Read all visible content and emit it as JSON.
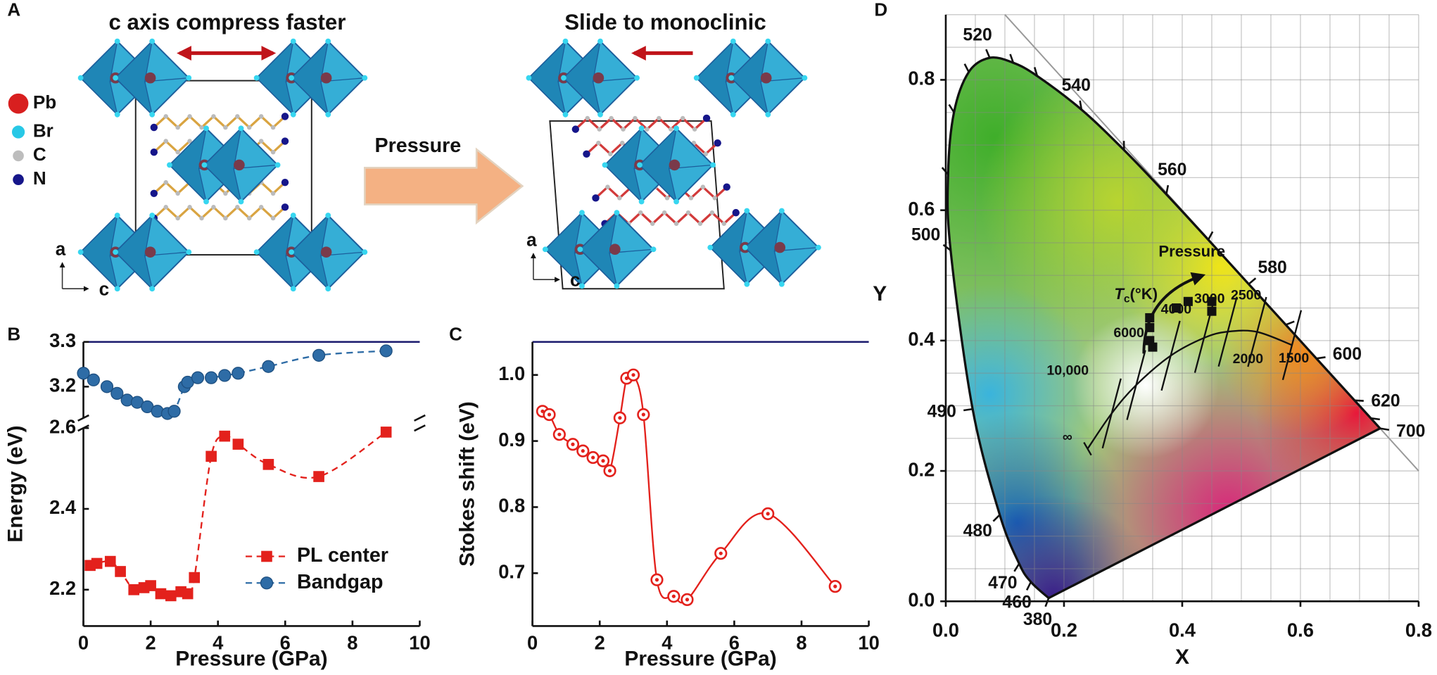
{
  "panel_a": {
    "label": "A",
    "left_title": "c axis compress faster",
    "right_title": "Slide to monoclinic",
    "arrow_label": "Pressure",
    "legend": [
      "Pb",
      "Br",
      "C",
      "N"
    ],
    "axes_left": [
      "a",
      "c"
    ],
    "axes_right": [
      "a",
      "c"
    ]
  },
  "chart_data": [
    {
      "label": "B",
      "type": "line",
      "x_label": "Pressure (GPa)",
      "y_label": "Energy (eV)",
      "xlim": [
        0,
        10
      ],
      "xticks": [
        0,
        2,
        4,
        6,
        8,
        10
      ],
      "ylim": [
        2.11,
        2.6
      ],
      "yticks": [
        2.2,
        2.4,
        2.6
      ],
      "ylim_top": [
        3.13,
        3.3
      ],
      "yticks_top": [
        3.2,
        3.3
      ],
      "legend": "lower right",
      "series": [
        {
          "name": "PL center",
          "color": "#e3211c",
          "marker": "square",
          "dashed": true,
          "segment": "bottom",
          "x": [
            0.2,
            0.4,
            0.8,
            1.1,
            1.5,
            1.8,
            2.0,
            2.3,
            2.6,
            2.9,
            3.1,
            3.3,
            3.8,
            4.2,
            4.6,
            5.5,
            7.0,
            9.0
          ],
          "values": [
            2.26,
            2.265,
            2.27,
            2.245,
            2.2,
            2.205,
            2.21,
            2.19,
            2.185,
            2.195,
            2.19,
            2.23,
            2.53,
            2.58,
            2.56,
            2.51,
            2.48,
            2.59
          ]
        },
        {
          "name": "Bandgap",
          "color": "#2e6ca6",
          "marker": "circle",
          "dashed": true,
          "segment": "top",
          "x": [
            0,
            0.3,
            0.7,
            1.0,
            1.3,
            1.6,
            1.9,
            2.2,
            2.5,
            2.7,
            3.0,
            3.1,
            3.4,
            3.8,
            4.2,
            4.6,
            5.5,
            7.0,
            9.0
          ],
          "values": [
            3.23,
            3.215,
            3.2,
            3.185,
            3.17,
            3.165,
            3.155,
            3.145,
            3.14,
            3.145,
            3.2,
            3.21,
            3.22,
            3.22,
            3.225,
            3.23,
            3.245,
            3.27,
            3.28
          ]
        }
      ]
    },
    {
      "label": "C",
      "type": "line",
      "x_label": "Pressure (GPa)",
      "y_label": "Stokes shift (eV)",
      "xlim": [
        0,
        10
      ],
      "xticks": [
        0,
        2,
        4,
        6,
        8,
        10
      ],
      "ylim": [
        0.62,
        1.05
      ],
      "yticks": [
        0.7,
        0.8,
        0.9,
        {
          "value": 1,
          "label": "1.0"
        }
      ],
      "series": [
        {
          "color": "#e3211c",
          "marker": "ring",
          "dashed": false,
          "smooth": true,
          "x": [
            0.3,
            0.5,
            0.8,
            1.2,
            1.5,
            1.8,
            2.1,
            2.3,
            2.6,
            2.8,
            3.0,
            3.3,
            3.7,
            4.2,
            4.6,
            5.6,
            7.0,
            9.0
          ],
          "values": [
            0.945,
            0.94,
            0.91,
            0.895,
            0.885,
            0.875,
            0.87,
            0.855,
            0.935,
            0.995,
            1.0,
            0.94,
            0.69,
            0.665,
            0.66,
            0.73,
            0.79,
            0.68
          ]
        }
      ]
    },
    {
      "label": "D",
      "type": "chromaticity",
      "x_label": "X",
      "y_label": "Y",
      "xlim": [
        0,
        0.8
      ],
      "xticks": [
        {
          "value": 0,
          "label": "0.0"
        },
        0.2,
        0.4,
        0.6,
        0.8
      ],
      "ylim": [
        0,
        0.9
      ],
      "yticks": [
        {
          "value": 0,
          "label": "0.0"
        },
        0.2,
        0.4,
        0.6,
        0.8
      ],
      "grid": true,
      "locus": {
        "labels": [
          380,
          460,
          470,
          480,
          490,
          500,
          null,
          null,
          null,
          520,
          null,
          null,
          540,
          null,
          560,
          null,
          580,
          null,
          600,
          620,
          null,
          700
        ],
        "x": [
          0.1741,
          0.144,
          0.1241,
          0.0913,
          0.0454,
          0.0082,
          0.0039,
          0.0139,
          0.0389,
          0.0743,
          0.1142,
          0.1547,
          0.2296,
          0.3016,
          0.3731,
          0.4441,
          0.5125,
          0.5752,
          0.627,
          0.6915,
          0.719,
          0.7347
        ],
        "y": [
          0.005,
          0.0297,
          0.0578,
          0.1327,
          0.295,
          0.5384,
          0.6548,
          0.7502,
          0.812,
          0.8338,
          0.8262,
          0.8059,
          0.7543,
          0.6923,
          0.6245,
          0.5547,
          0.4866,
          0.4242,
          0.3725,
          0.3083,
          0.2809,
          0.2653
        ]
      },
      "planckian": {
        "labels": [
          "∞",
          "10,000",
          "6000",
          "4000",
          "3000",
          "2500",
          "2000",
          "1500"
        ],
        "x": [
          0.2399,
          0.2807,
          0.3221,
          0.3805,
          0.4369,
          0.477,
          0.5267,
          0.5857
        ],
        "y": [
          0.234,
          0.2883,
          0.3318,
          0.3768,
          0.4041,
          0.4137,
          0.4133,
          0.3931
        ]
      },
      "points": {
        "color": "#111111",
        "x": [
          0.35,
          0.345,
          0.345,
          0.345,
          0.39,
          0.41,
          0.45,
          0.45
        ],
        "y": [
          0.39,
          0.4,
          0.42,
          0.435,
          0.45,
          0.46,
          0.46,
          0.445
        ]
      },
      "annotation": "Pressure",
      "tc_label": [
        "T",
        "c",
        "(°K)"
      ]
    }
  ]
}
